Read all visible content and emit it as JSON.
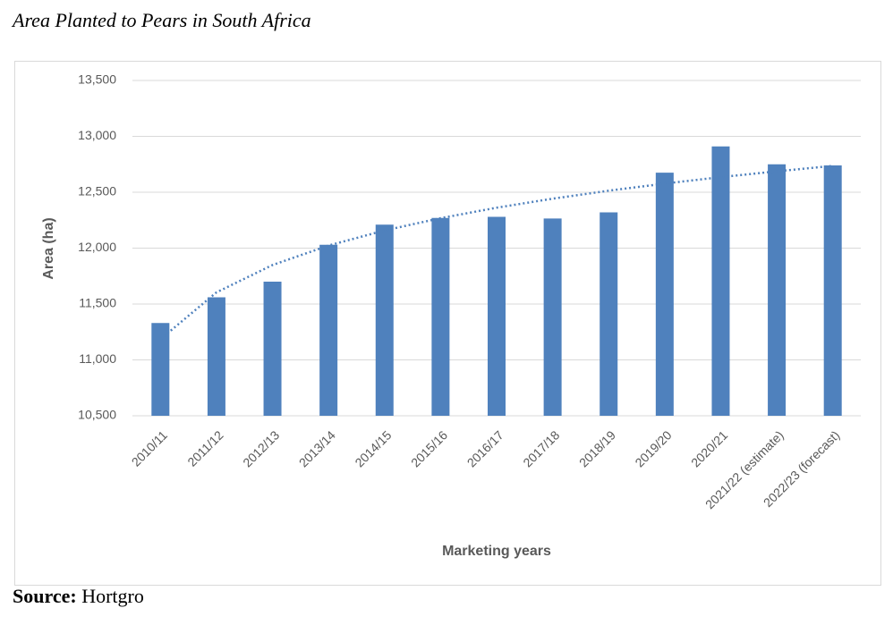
{
  "chart_data": {
    "type": "bar",
    "title": "Area Planted to Pears in South Africa",
    "x_label": "Marketing years",
    "y_label": "Area (ha)",
    "categories": [
      "2010/11",
      "2011/12",
      "2012/13",
      "2013/14",
      "2014/15",
      "2015/16",
      "2016/17",
      "2017/18",
      "2018/19",
      "2019/20",
      "2020/21",
      "2021/22 (estimate)",
      "2022/23 (forecast)"
    ],
    "values": [
      11330,
      11560,
      11700,
      12030,
      12210,
      12270,
      12280,
      12265,
      12320,
      12675,
      12910,
      12750,
      12740
    ],
    "color": "#4f81bd",
    "trendline": "logarithmic",
    "ylim": [
      10500,
      13500
    ],
    "yticks": [
      {
        "value": 10500,
        "label": "10,500"
      },
      {
        "value": 11000,
        "label": "11,000"
      },
      {
        "value": 11500,
        "label": "11,500"
      },
      {
        "value": 12000,
        "label": "12,000"
      },
      {
        "value": 12500,
        "label": "12,500"
      },
      {
        "value": 13000,
        "label": "13,000"
      },
      {
        "value": 13500,
        "label": "13,500"
      }
    ],
    "grid": true,
    "source_label": "Source:",
    "source": "Hortgro"
  }
}
